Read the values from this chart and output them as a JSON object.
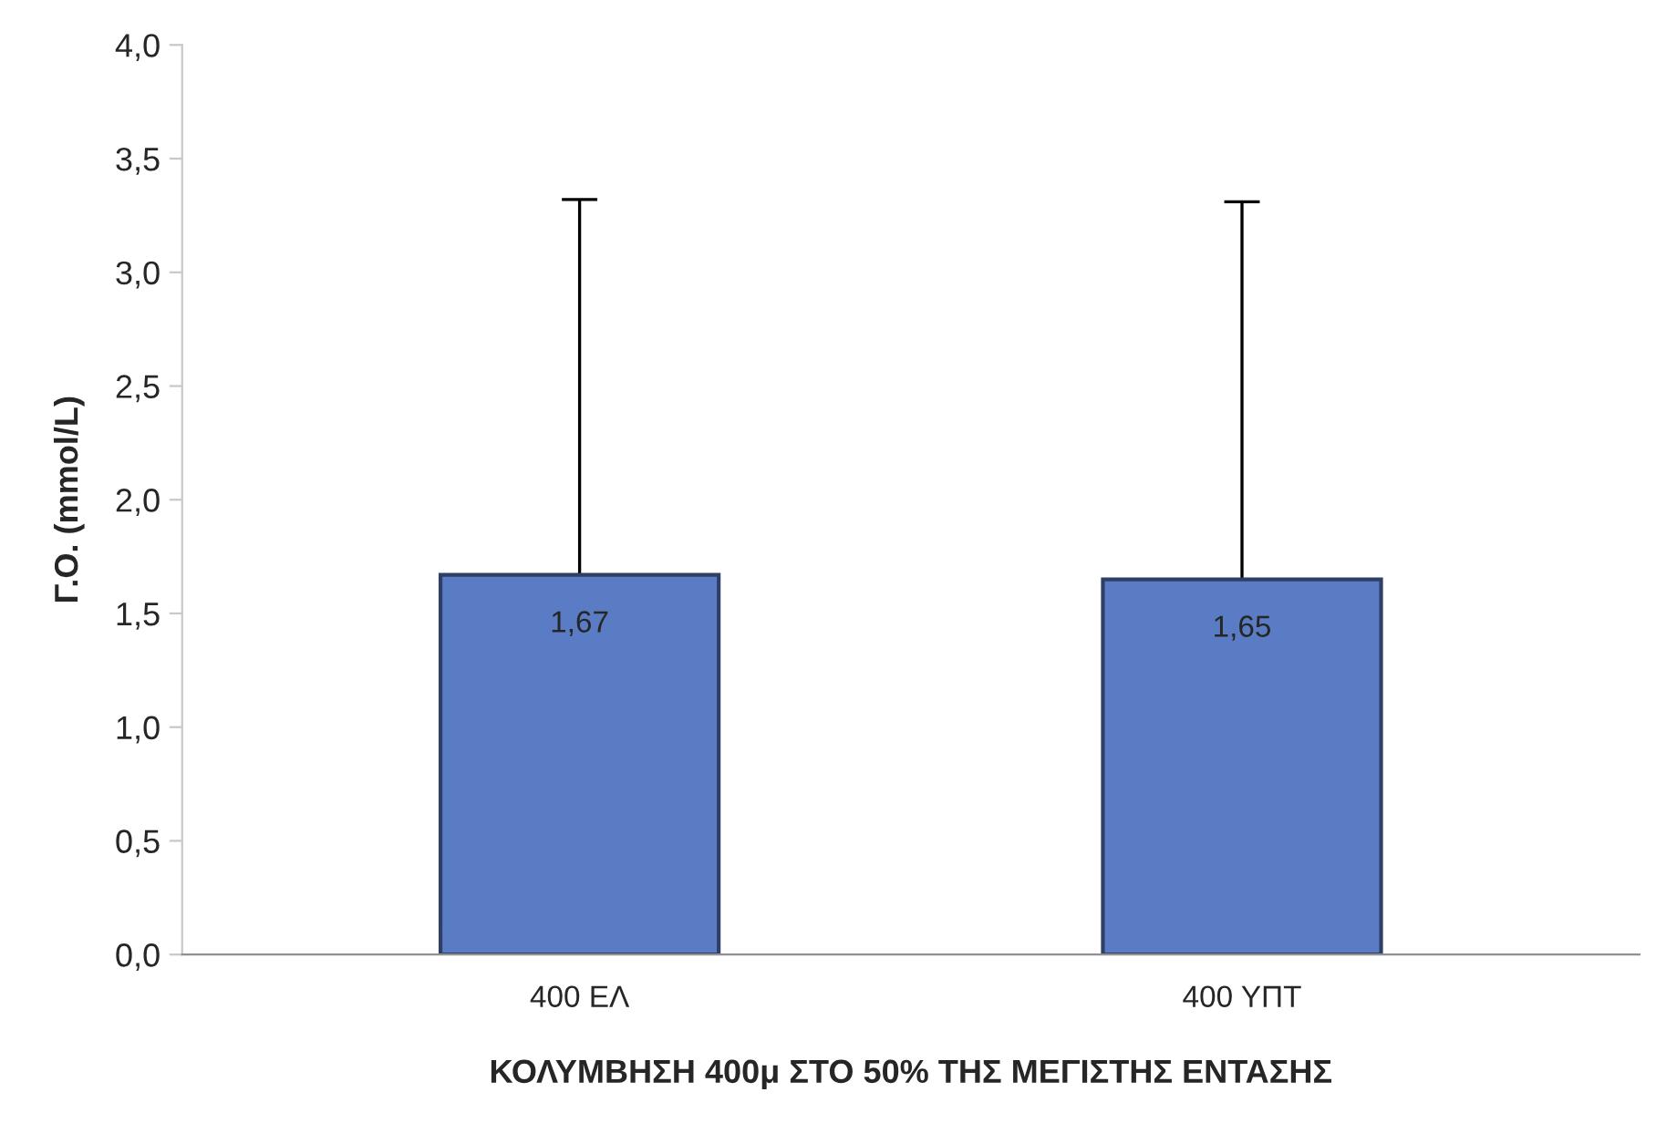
{
  "chart_data": {
    "type": "bar",
    "ylabel": "Γ.Ο. (mmol/L)",
    "xlabel": "ΚΟΛΥΜΒΗΣΗ 400μ ΣΤΟ 50% ΤΗΣ ΜΕΓΙΣΤΗΣ ΕΝΤΑΣΗΣ",
    "categories": [
      "400 ΕΛ",
      "400 ΥΠΤ"
    ],
    "values": [
      1.67,
      1.65
    ],
    "value_labels": [
      "1,67",
      "1,65"
    ],
    "errors": [
      [
        1.67,
        3.32
      ],
      [
        1.65,
        3.31
      ]
    ],
    "color": "#5a7cc4",
    "ylim": [
      0,
      4
    ],
    "yticks": [
      {
        "value": 0,
        "label": "0,0"
      },
      {
        "value": 0.5,
        "label": "0,5"
      },
      {
        "value": 1,
        "label": "1,0"
      },
      {
        "value": 1.5,
        "label": "1,5"
      },
      {
        "value": 2,
        "label": "2,0"
      },
      {
        "value": 2.5,
        "label": "2,5"
      },
      {
        "value": 3,
        "label": "3,0"
      },
      {
        "value": 3.5,
        "label": "3,5"
      },
      {
        "value": 4,
        "label": "4,0"
      }
    ],
    "grid": false
  }
}
